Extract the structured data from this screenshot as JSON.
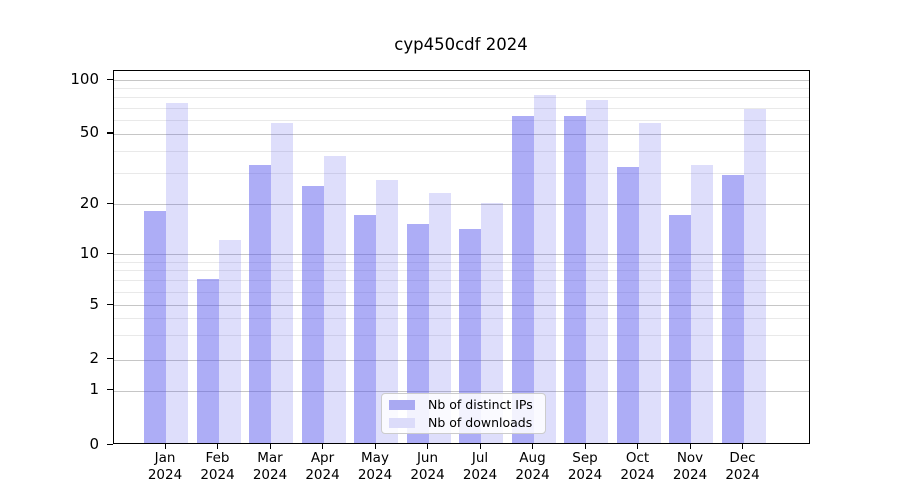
{
  "chart_data": {
    "type": "bar",
    "title": "cyp450cdf 2024",
    "categories": [
      "Jan 2024",
      "Feb 2024",
      "Mar 2024",
      "Apr 2024",
      "May 2024",
      "Jun 2024",
      "Jul 2024",
      "Aug 2024",
      "Sep 2024",
      "Oct 2024",
      "Nov 2024",
      "Dec 2024"
    ],
    "series": [
      {
        "name": "Nb of distinct IPs",
        "color": "rgba(80,80,235,0.47)",
        "legend_color": "#a9a9f2",
        "values": [
          18,
          7,
          33,
          25,
          17,
          15,
          14,
          62,
          62,
          32,
          17,
          29
        ]
      },
      {
        "name": "Nb of downloads",
        "color": "rgba(80,80,235,0.19)",
        "legend_color": "#dcdcfa",
        "values": [
          73,
          12,
          57,
          37,
          27,
          23,
          20,
          81,
          76,
          57,
          33,
          68
        ]
      }
    ],
    "xlabel": "",
    "ylabel": "",
    "yscale": "symlog",
    "ylim": [
      0,
      112
    ],
    "yticks": [
      0,
      1,
      2,
      5,
      10,
      20,
      50,
      100
    ],
    "yticks_minor": [
      3,
      4,
      6,
      7,
      8,
      9,
      30,
      40,
      60,
      70,
      80,
      90
    ],
    "grid": "on",
    "legend_position": "lower center inside plot",
    "axis_color": "#000000",
    "grid_major_color": "#c6c6c6",
    "grid_minor_color": "#e9e9e9",
    "background_color": "#ffffff"
  }
}
